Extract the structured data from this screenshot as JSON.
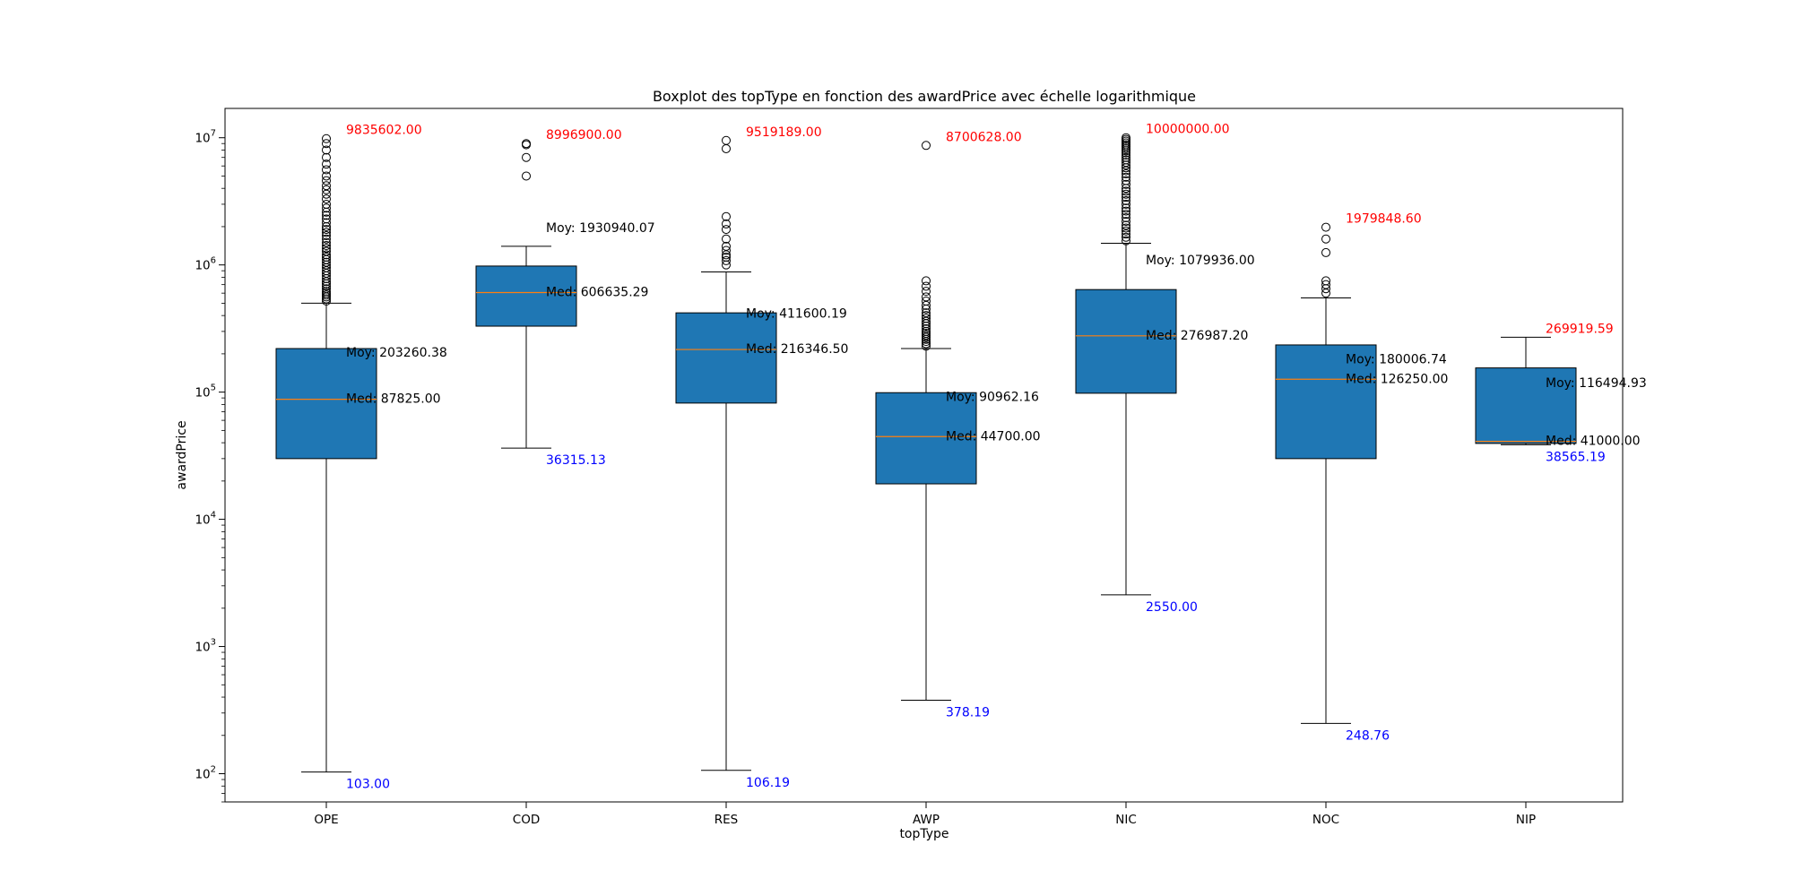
{
  "chart_data": {
    "type": "boxplot",
    "title": "Boxplot des topType en fonction des awardPrice avec échelle logarithmique",
    "xlabel": "topType",
    "ylabel": "awardPrice",
    "yscale": "log",
    "ylim": [
      60,
      17000000
    ],
    "grid": false,
    "ytick_labels": [
      {
        "base": "10",
        "exp": "2",
        "value": 100
      },
      {
        "base": "10",
        "exp": "3",
        "value": 1000
      },
      {
        "base": "10",
        "exp": "4",
        "value": 10000
      },
      {
        "base": "10",
        "exp": "5",
        "value": 100000
      },
      {
        "base": "10",
        "exp": "6",
        "value": 1000000
      },
      {
        "base": "10",
        "exp": "7",
        "value": 10000000
      }
    ],
    "colors": {
      "box_fill": "#1f77b4",
      "median_line": "#ff7f0e",
      "max_label": "#ff0000",
      "min_label": "#0000ff",
      "stat_label": "#000000"
    },
    "categories": [
      "OPE",
      "COD",
      "RES",
      "AWP",
      "NIC",
      "NOC",
      "NIP"
    ],
    "boxes": [
      {
        "category": "OPE",
        "whisker_low": 103,
        "q1": 30000,
        "median": 87825,
        "q3": 220000,
        "whisker_high": 500000,
        "max_text": "9835602.00",
        "min_text": "103.00",
        "median_text": "Med: 87825.00",
        "mean_text": "Moy: 203260.38",
        "max_value": 9835602,
        "mean_value": 203260.38,
        "outliers": [
          520000,
          540000,
          560000,
          580000,
          600000,
          620000,
          650000,
          680000,
          710000,
          740000,
          780000,
          820000,
          860000,
          900000,
          950000,
          1000000,
          1050000,
          1100000,
          1150000,
          1200000,
          1280000,
          1350000,
          1420000,
          1500000,
          1600000,
          1700000,
          1800000,
          1900000,
          2000000,
          2150000,
          2300000,
          2450000,
          2600000,
          2800000,
          3000000,
          3300000,
          3600000,
          3900000,
          4200000,
          4600000,
          5000000,
          5600000,
          6200000,
          7000000,
          8000000,
          9000000,
          9835602
        ]
      },
      {
        "category": "COD",
        "whisker_low": 36315.13,
        "q1": 330000,
        "median": 606635.29,
        "q3": 980000,
        "whisker_high": 1400000,
        "max_text": "8996900.00",
        "min_text": "36315.13",
        "median_text": "Med: 606635.29",
        "mean_text": "Moy: 1930940.07",
        "max_value": 8996900,
        "mean_value": 1930940.07,
        "outliers": [
          5000000,
          7000000,
          8800000,
          8996900
        ]
      },
      {
        "category": "RES",
        "whisker_low": 106.19,
        "q1": 82000,
        "median": 216346.5,
        "q3": 420000,
        "whisker_high": 880000,
        "max_text": "9519189.00",
        "min_text": "106.19",
        "median_text": "Med: 216346.50",
        "mean_text": "Moy: 411600.19",
        "max_value": 9519189,
        "mean_value": 411600.19,
        "outliers": [
          1000000,
          1080000,
          1150000,
          1200000,
          1300000,
          1400000,
          1600000,
          1900000,
          2100000,
          2400000,
          8200000,
          9519189
        ]
      },
      {
        "category": "AWP",
        "whisker_low": 378.19,
        "q1": 19000,
        "median": 44700,
        "q3": 99000,
        "whisker_high": 220000,
        "max_text": "8700628.00",
        "min_text": "378.19",
        "median_text": "Med: 44700.00",
        "mean_text": "Moy: 90962.16",
        "max_value": 8700628,
        "mean_value": 90962.16,
        "outliers": [
          230000,
          240000,
          250000,
          260000,
          270000,
          280000,
          290000,
          300000,
          315000,
          330000,
          345000,
          360000,
          380000,
          400000,
          420000,
          450000,
          480000,
          520000,
          560000,
          620000,
          680000,
          750000,
          8700628
        ]
      },
      {
        "category": "NIC",
        "whisker_low": 2550,
        "q1": 98000,
        "median": 276987.2,
        "q3": 640000,
        "whisker_high": 1480000,
        "max_text": "10000000.00",
        "min_text": "2550.00",
        "median_text": "Med: 276987.20",
        "mean_text": "Moy: 1079936.00",
        "max_value": 10000000,
        "mean_value": 1079936,
        "outliers": [
          1550000,
          1650000,
          1750000,
          1850000,
          1950000,
          2050000,
          2200000,
          2350000,
          2500000,
          2650000,
          2800000,
          3000000,
          3200000,
          3400000,
          3600000,
          3800000,
          4000000,
          4300000,
          4600000,
          4900000,
          5200000,
          5500000,
          5800000,
          6100000,
          6400000,
          6700000,
          7000000,
          7300000,
          7600000,
          7900000,
          8200000,
          8500000,
          8800000,
          9100000,
          9400000,
          9700000,
          10000000
        ]
      },
      {
        "category": "NOC",
        "whisker_low": 248.76,
        "q1": 30000,
        "median": 126250,
        "q3": 235000,
        "whisker_high": 550000,
        "max_text": "1979848.60",
        "min_text": "248.76",
        "median_text": "Med: 126250.00",
        "mean_text": "Moy: 180006.74",
        "max_value": 1979848.6,
        "mean_value": 180006.74,
        "outliers": [
          600000,
          650000,
          700000,
          750000,
          1250000,
          1600000,
          1979848.6
        ]
      },
      {
        "category": "NIP",
        "whisker_low": 38565.19,
        "q1": 39500,
        "median": 41000,
        "q3": 155000,
        "whisker_high": 269919.59,
        "max_text": "269919.59",
        "min_text": "38565.19",
        "median_text": "Med: 41000.00",
        "mean_text": "Moy: 116494.93",
        "max_value": 269919.59,
        "mean_value": 116494.93,
        "outliers": []
      }
    ]
  }
}
